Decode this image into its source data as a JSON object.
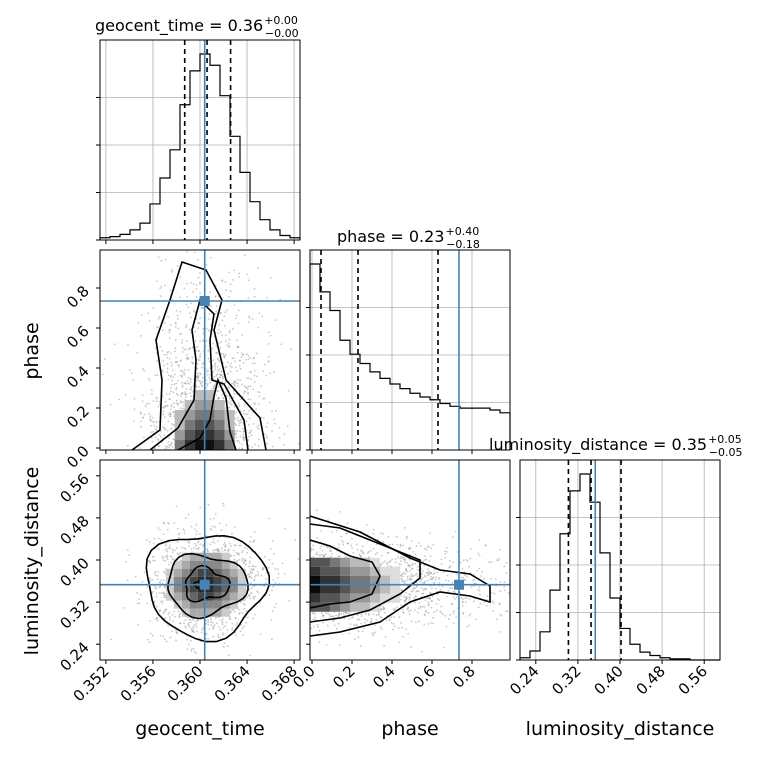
{
  "figure": {
    "type": "corner-plot"
  },
  "colors": {
    "truth": "#4682b4",
    "contour": "#000000",
    "hist": "#000000",
    "scatter": "#9a9a9a"
  },
  "chart_data": {
    "type": "corner",
    "parameters": [
      {
        "name": "geocent_time",
        "label": "geocent_time",
        "title": "geocent_time = 0.36",
        "median": 0.36,
        "err_plus": "+0.00",
        "err_minus": "−0.00",
        "truth": 0.3604,
        "range": [
          0.3515,
          0.3685
        ],
        "quantiles": [
          0.3587,
          0.3606,
          0.3626
        ],
        "ticks": [
          0.352,
          0.356,
          0.36,
          0.364,
          0.368
        ],
        "tick_labels": [
          "0.352",
          "0.356",
          "0.360",
          "0.364",
          "0.368"
        ]
      },
      {
        "name": "phase",
        "label": "phase",
        "title": "phase = 0.23",
        "median": 0.23,
        "err_plus": "+0.40",
        "err_minus": "−0.18",
        "truth": 0.735,
        "range": [
          -0.01,
          0.99
        ],
        "quantiles": [
          0.045,
          0.23,
          0.63
        ],
        "ticks": [
          0.0,
          0.2,
          0.4,
          0.6,
          0.8
        ],
        "tick_labels": [
          "0.0",
          "0.2",
          "0.4",
          "0.6",
          "0.8"
        ]
      },
      {
        "name": "luminosity_distance",
        "label": "luminosity_distance",
        "title": "luminosity_distance = 0.35",
        "median": 0.35,
        "err_plus": "+0.05",
        "err_minus": "−0.05",
        "truth": 0.353,
        "range": [
          0.21,
          0.59
        ],
        "quantiles": [
          0.302,
          0.345,
          0.402
        ],
        "ticks": [
          0.24,
          0.32,
          0.4,
          0.48,
          0.56
        ],
        "tick_labels": [
          "0.24",
          "0.32",
          "0.40",
          "0.48",
          "0.56"
        ]
      }
    ],
    "histograms": [
      {
        "param": "geocent_time",
        "counts": [
          2,
          3,
          5,
          9,
          15,
          32,
          55,
          80,
          120,
          150,
          165,
          155,
          128,
          92,
          60,
          34,
          18,
          9,
          4,
          2
        ]
      },
      {
        "param": "phase",
        "counts": [
          200,
          170,
          150,
          118,
          103,
          93,
          84,
          77,
          71,
          66,
          61,
          57,
          54,
          50,
          47,
          45,
          45,
          45,
          43,
          40
        ]
      },
      {
        "param": "luminosity_distance",
        "counts": [
          2,
          8,
          25,
          62,
          112,
          150,
          165,
          140,
          95,
          55,
          28,
          14,
          7,
          4,
          2,
          1,
          1,
          0,
          0,
          0
        ]
      }
    ],
    "pair_densities": [
      {
        "x": "geocent_time",
        "y": "phase",
        "mode": [
          0.3604,
          0.03
        ],
        "spread": [
          0.0022,
          0.12
        ]
      },
      {
        "x": "geocent_time",
        "y": "luminosity_distance",
        "mode": [
          0.3605,
          0.353
        ],
        "spread": [
          0.0022,
          0.045
        ]
      },
      {
        "x": "phase",
        "y": "luminosity_distance",
        "mode": [
          0.0,
          0.353
        ],
        "spread": [
          0.32,
          0.03
        ]
      }
    ],
    "grid": true
  }
}
